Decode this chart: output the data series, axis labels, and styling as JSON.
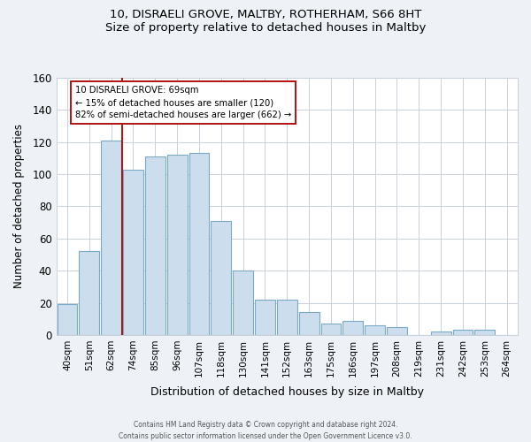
{
  "title": "10, DISRAELI GROVE, MALTBY, ROTHERHAM, S66 8HT",
  "subtitle": "Size of property relative to detached houses in Maltby",
  "xlabel": "Distribution of detached houses by size in Maltby",
  "ylabel": "Number of detached properties",
  "bar_labels": [
    "40sqm",
    "51sqm",
    "62sqm",
    "74sqm",
    "85sqm",
    "96sqm",
    "107sqm",
    "118sqm",
    "130sqm",
    "141sqm",
    "152sqm",
    "163sqm",
    "175sqm",
    "186sqm",
    "197sqm",
    "208sqm",
    "219sqm",
    "231sqm",
    "242sqm",
    "253sqm",
    "264sqm"
  ],
  "bar_values": [
    19,
    52,
    121,
    103,
    111,
    112,
    113,
    71,
    40,
    22,
    22,
    14,
    7,
    9,
    6,
    5,
    0,
    2,
    3,
    3,
    0
  ],
  "bar_color": "#ccdded",
  "bar_edge_color": "#7aaac8",
  "ylim": [
    0,
    160
  ],
  "yticks": [
    0,
    20,
    40,
    60,
    80,
    100,
    120,
    140,
    160
  ],
  "vline_index": 2,
  "vline_color": "#aa0000",
  "marker_label": "10 DISRAELI GROVE: 69sqm",
  "annotation_line1": "← 15% of detached houses are smaller (120)",
  "annotation_line2": "82% of semi-detached houses are larger (662) →",
  "footer_line1": "Contains HM Land Registry data © Crown copyright and database right 2024.",
  "footer_line2": "Contains public sector information licensed under the Open Government Licence v3.0.",
  "background_color": "#eef2f7",
  "plot_bg_color": "#ffffff",
  "grid_color": "#c8d0da"
}
